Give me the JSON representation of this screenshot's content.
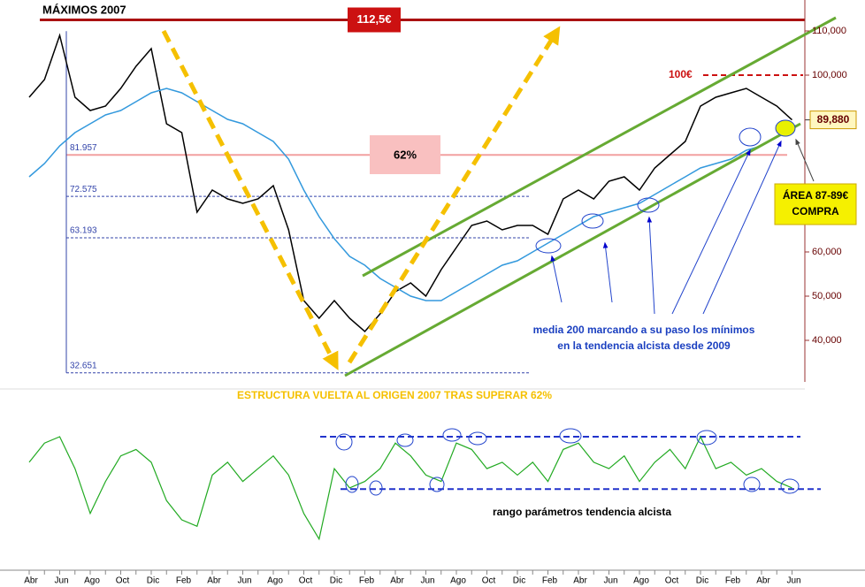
{
  "chart_data": [
    {
      "type": "line",
      "title": "MÁXIMOS 2007",
      "categories": [
        "Abr",
        null,
        "Jun",
        null,
        "Ago",
        null,
        "Oct",
        null,
        "Dic",
        null,
        "Feb",
        null,
        "Abr",
        null,
        "Jun",
        null,
        "Ago",
        null,
        "Oct",
        null,
        "Dic",
        null,
        "Feb",
        null,
        "Abr",
        null,
        "Jun",
        null,
        "Ago",
        null,
        "Oct",
        null,
        "Dic",
        null,
        "Feb",
        null,
        "Abr",
        null,
        "Jun",
        null,
        "Ago",
        null,
        "Oct",
        null,
        "Dic",
        null,
        "Feb",
        null,
        "Abr",
        null,
        "Jun"
      ],
      "series": [
        {
          "color": "#000000",
          "values": [
            95,
            99,
            109,
            95,
            92,
            93,
            97,
            102,
            106,
            89,
            87,
            69,
            74,
            72,
            71,
            72,
            75,
            65,
            49,
            45,
            49,
            45,
            42,
            46,
            51,
            53,
            50,
            56,
            61,
            66,
            67,
            65,
            66,
            66,
            64,
            72,
            74,
            72,
            76,
            77,
            74,
            79,
            82,
            85,
            93,
            95,
            96,
            97,
            95,
            93,
            89.88
          ]
        },
        {
          "color": "#3399dd",
          "values": [
            77,
            80,
            84,
            87,
            89,
            91,
            92,
            94,
            96,
            97,
            96,
            94,
            92,
            90,
            89,
            87,
            85,
            81,
            74,
            68,
            63,
            59,
            57,
            54,
            52,
            50,
            49,
            49,
            51,
            53,
            55,
            57,
            58,
            60,
            62,
            64,
            66,
            68,
            69,
            70,
            71,
            73,
            75,
            77,
            79,
            80,
            81,
            83,
            84,
            86,
            88
          ]
        }
      ],
      "ylim": [
        30.6,
        117
      ],
      "yticks": [
        {
          "value": 40,
          "label": "40,000"
        },
        {
          "value": 50,
          "label": "50,000"
        },
        {
          "value": 60,
          "label": "60,000"
        },
        {
          "value": 100,
          "label": "100,000"
        },
        {
          "value": 110,
          "label": "110,000"
        }
      ],
      "levels": [
        81.957,
        72.575,
        63.193,
        32.651
      ],
      "resistance": [
        {
          "value": 112.5,
          "label": "112,5€"
        },
        {
          "value": 100,
          "label": "100€"
        }
      ],
      "last_price": {
        "value": 89.88,
        "label": "89,880"
      },
      "retracement": "62%",
      "buy_zone": [
        "ÁREA 87-89€",
        "COMPRA"
      ],
      "annotations": [
        "media 200 marcando a su paso los mínimos",
        "en la tendencia alcista desde 2009",
        "ESTRUCTURA VUELTA AL ORIGEN 2007 TRAS SUPERAR 62%"
      ]
    },
    {
      "type": "line",
      "series": [
        {
          "color": "#22aa22",
          "values": [
            60,
            75,
            80,
            55,
            20,
            45,
            65,
            70,
            60,
            30,
            15,
            10,
            50,
            60,
            45,
            55,
            65,
            50,
            20,
            0,
            55,
            40,
            45,
            55,
            75,
            65,
            50,
            45,
            75,
            70,
            55,
            60,
            50,
            60,
            45,
            70,
            75,
            60,
            55,
            65,
            45,
            60,
            70,
            55,
            80,
            55,
            60,
            50,
            55,
            45,
            40
          ]
        }
      ],
      "ylim": [
        -5,
        100
      ],
      "levels": [
        80,
        39
      ],
      "annotations": [
        "rango parámetros tendencia alcista"
      ]
    }
  ]
}
